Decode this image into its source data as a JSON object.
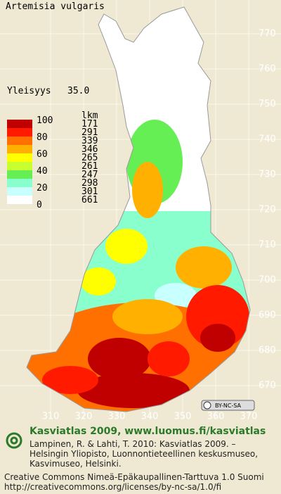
{
  "title": "Artemisia vulgaris",
  "frequency": {
    "label": "Yleisyys",
    "value": "35.0"
  },
  "legend": {
    "scale_labels": [
      "100",
      "80",
      "60",
      "40",
      "20",
      "0"
    ],
    "count_header": "lkm",
    "classes": [
      {
        "color": "#c00000",
        "count": "171"
      },
      {
        "color": "#ff1a00",
        "count": "291"
      },
      {
        "color": "#ff7000",
        "count": "339"
      },
      {
        "color": "#ffb000",
        "count": "346"
      },
      {
        "color": "#ffff00",
        "count": "265"
      },
      {
        "color": "#c8ff30",
        "count": "261"
      },
      {
        "color": "#66ee55",
        "count": "247"
      },
      {
        "color": "#88ffcc",
        "count": "298"
      },
      {
        "color": "#c8ffff",
        "count": "301"
      },
      {
        "color": "#ffffff",
        "count": "661"
      }
    ]
  },
  "y_labels": [
    "770",
    "760",
    "750",
    "740",
    "730",
    "720",
    "710",
    "700",
    "690",
    "680",
    "670"
  ],
  "x_labels": [
    "310",
    "320",
    "330",
    "340",
    "350",
    "360",
    "370"
  ],
  "badge": "BY-NC-SA",
  "footer": {
    "heading": "Kasviatlas 2009, www.luomus.fi/kasviatlas",
    "citation": [
      "Lampinen, R. & Lahti, T. 2010: Kasviatlas 2009. –",
      "Helsingin Yliopisto, Luonnontieteellinen keskusmuseo,",
      "Kasvimuseo, Helsinki."
    ],
    "license": [
      "Creative Commons Nimeä-Epäkaupallinen-Tarttuva 1.0 Suomi",
      "http://creativecommons.org/licenses/by-nc-sa/1.0/fi"
    ]
  }
}
